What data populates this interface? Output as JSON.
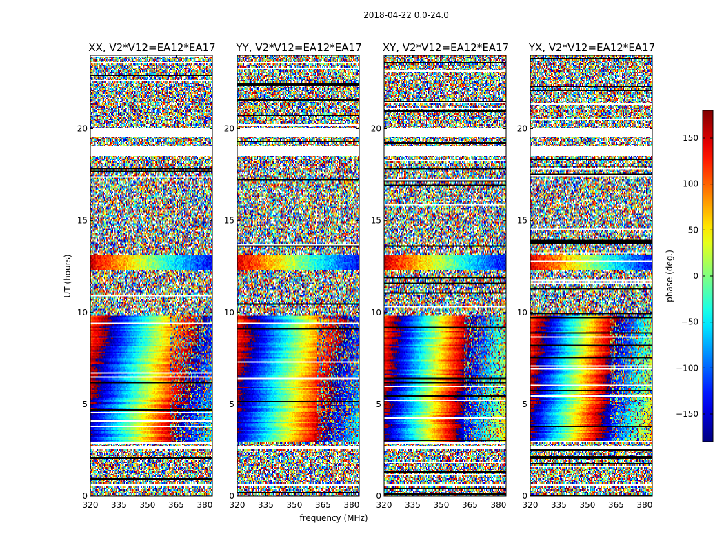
{
  "chart_data": {
    "type": "heatmap",
    "title": "2018-04-22 0.0-24.0",
    "xlabel": "frequency (MHz)",
    "ylabel": "UT (hours)",
    "xlim": [
      320,
      384
    ],
    "ylim": [
      0,
      24
    ],
    "xticks": [
      "320",
      "335",
      "350",
      "365",
      "380"
    ],
    "yticks": [
      "0",
      "5",
      "10",
      "15",
      "20"
    ],
    "panels": [
      {
        "title": "XX, V2*V12=EA12*EA17",
        "pol": "XX"
      },
      {
        "title": "YY, V2*V12=EA12*EA17",
        "pol": "YY"
      },
      {
        "title": "XY, V2*V12=EA12*EA17",
        "pol": "XY"
      },
      {
        "title": "YX, V2*V12=EA12*EA17",
        "pol": "YX"
      }
    ],
    "colorbar": {
      "label": "phase (deg.)",
      "range": [
        -180,
        180
      ],
      "ticks": [
        "150",
        "100",
        "50",
        "0",
        "−50",
        "−100",
        "−150"
      ],
      "tick_values": [
        150,
        100,
        50,
        0,
        -50,
        -100,
        -150
      ],
      "colormap": "jet"
    },
    "structure": {
      "coherent_phase_hours": [
        2.9,
        9.8
      ],
      "coherent_band_hours": [
        12.3,
        13.1
      ],
      "rfi_edge_MHz": 362,
      "gap_hours": [
        [
          0.55,
          0.7
        ],
        [
          2.55,
          2.7
        ],
        [
          18.55,
          19.05
        ],
        [
          19.6,
          20.0
        ]
      ]
    }
  }
}
